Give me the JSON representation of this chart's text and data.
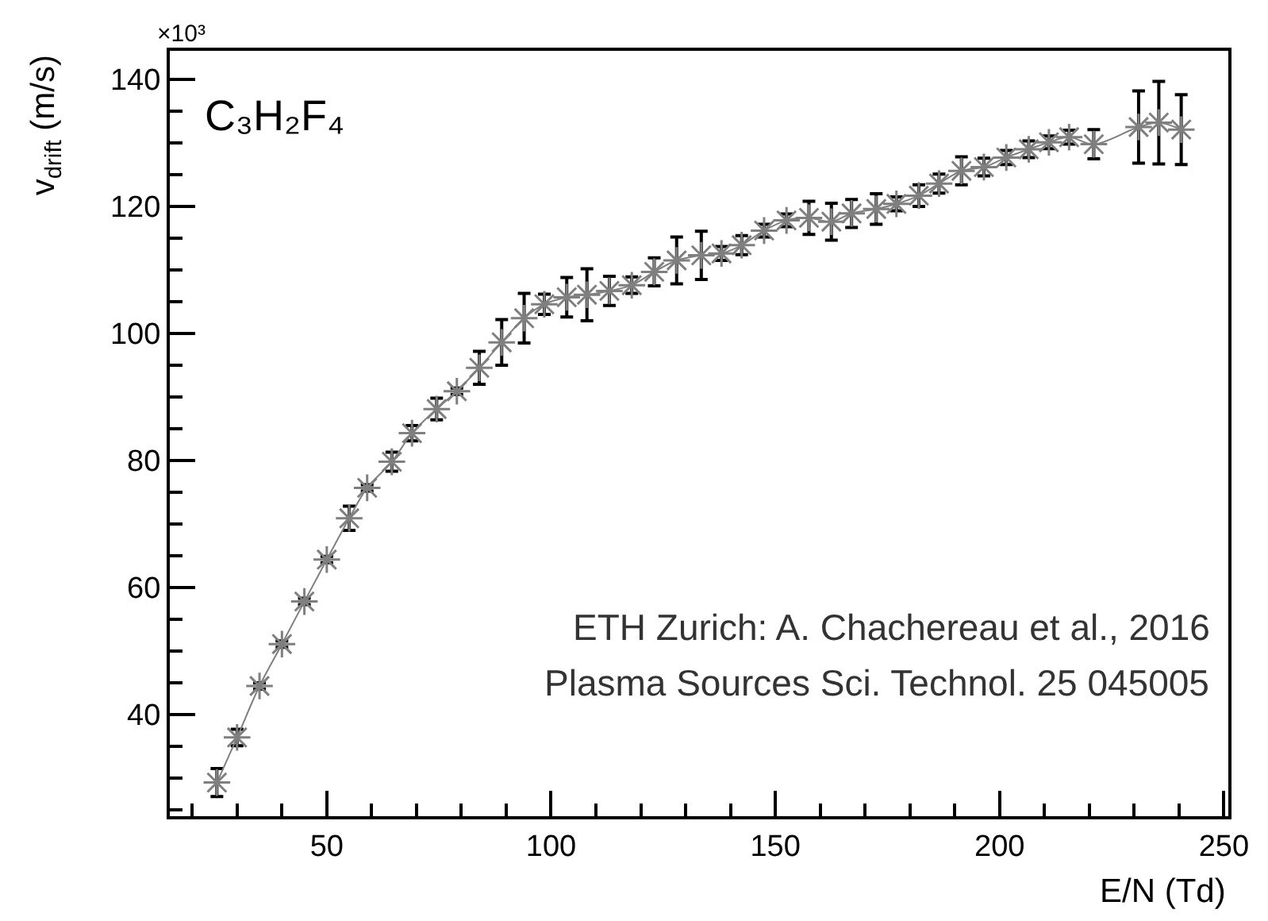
{
  "chart_data": {
    "type": "line",
    "xlabel": "E/N (Td)",
    "ylabel": "v$_{drift}$ (m/s)",
    "x": [
      25.5,
      30,
      35,
      40,
      45,
      50,
      55,
      59,
      64.5,
      69,
      74.5,
      79,
      84,
      89,
      94,
      98.5,
      103.5,
      108,
      113,
      118,
      123,
      128,
      133.5,
      138,
      142.5,
      147.5,
      152.5,
      157.5,
      162.5,
      167,
      172.5,
      177,
      182,
      186.5,
      191.5,
      196.5,
      201.5,
      206.5,
      211,
      215.5,
      221,
      231,
      235.5,
      240.5
    ],
    "series": [
      {
        "color": "#7f7f7f",
        "values": [
          29.3,
          36.4,
          44.5,
          51.1,
          57.8,
          64.4,
          70.9,
          75.7,
          79.8,
          84.3,
          88.1,
          90.9,
          94.6,
          98.6,
          102.4,
          104.6,
          105.7,
          106.1,
          106.7,
          107.6,
          109.7,
          111.5,
          112.3,
          112.6,
          113.9,
          116.2,
          117.8,
          118.2,
          117.6,
          118.9,
          119.6,
          120.4,
          121.7,
          123.6,
          125.6,
          126.2,
          127.7,
          129,
          130.1,
          130.9,
          129.8,
          132.5,
          133.2,
          132.1
        ],
        "errors": [
          2.2,
          1.3,
          0.5,
          0.5,
          0.5,
          0.5,
          1.9,
          0.5,
          1.5,
          1.2,
          1.7,
          0.5,
          2.6,
          3.6,
          3.9,
          1.6,
          3.1,
          4.1,
          2.3,
          1.3,
          2.2,
          3.7,
          3.8,
          1.1,
          1.5,
          1.0,
          1.0,
          2.6,
          2.9,
          2.2,
          2.4,
          1.1,
          1.7,
          1.5,
          2.2,
          1.4,
          1.1,
          1.3,
          1.0,
          1.1,
          2.3,
          5.7,
          6.5,
          5.5
        ]
      }
    ],
    "xlim": [
      15,
      251
    ],
    "ylim": [
      24,
      144.5
    ],
    "xticks": [
      50,
      100,
      150,
      200,
      250
    ],
    "yticks": [
      40,
      60,
      80,
      100,
      120,
      140
    ],
    "marker": "cross",
    "annotations": [
      "×10³",
      "C₃H₂F₄",
      "ETH Zurich: A. Chachereau et al., 2016",
      "Plasma Sources Sci. Technol. 25 045005"
    ]
  }
}
